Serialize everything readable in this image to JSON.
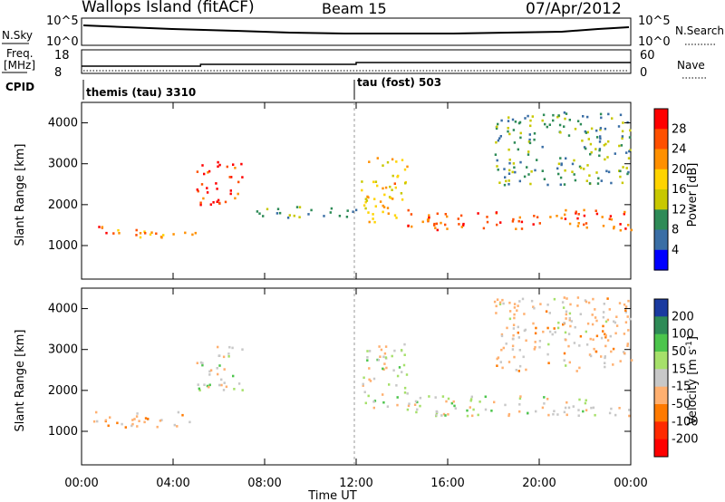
{
  "header": {
    "site": "Wallops Island (fitACF)",
    "beam": "Beam 15",
    "date": "07/Apr/2012"
  },
  "summary_panels": {
    "nsky_label": "N.Sky",
    "nsky_ticks": [
      "10^5",
      "10^0"
    ],
    "nsearch_label": "N.Search",
    "nsearch_ticks": [
      "10^5",
      "10^0"
    ],
    "freq_label": "Freq.",
    "freq_unit": "[MHz]",
    "freq_ticks": [
      "18",
      "8"
    ],
    "nave_label": "Nave",
    "nave_ticks": [
      "60",
      "0"
    ],
    "cpid_label": "CPID",
    "cpid_modes": [
      {
        "label": "themis (tau) 3310",
        "start_hour": 0
      },
      {
        "label": "tau (fost) 503",
        "start_hour": 12
      }
    ],
    "freq_steps": [
      {
        "hour": 0,
        "mhz": 10.5
      },
      {
        "hour": 5.2,
        "mhz": 11.5
      },
      {
        "hour": 12.0,
        "mhz": 12.5
      },
      {
        "hour": 24.0,
        "mhz": 12.5
      }
    ]
  },
  "colorbars": {
    "power": {
      "label": "Power [dB]",
      "ticks": [
        "28",
        "24",
        "20",
        "16",
        "12",
        "8",
        "4"
      ],
      "colors": [
        "#ff0000",
        "#ff5000",
        "#ff9000",
        "#ffd400",
        "#c8c800",
        "#2e8b57",
        "#3a6ea5",
        "#0000ff"
      ]
    },
    "velocity": {
      "label": "Velocity [m s",
      "label_sup": "-1",
      "label_end": "]",
      "ticks": [
        "200",
        "100",
        "50",
        "15",
        "-15",
        "-50",
        "-100",
        "-200"
      ],
      "colors": [
        "#1a3aa0",
        "#2e8b57",
        "#4cc54c",
        "#a6e06a",
        "#c8c8c8",
        "#ffb070",
        "#ff7a00",
        "#ff2a00",
        "#ff0000"
      ]
    }
  },
  "axes": {
    "ylabel": "Slant Range [km]",
    "yticks": [
      "4000",
      "3000",
      "2000",
      "1000"
    ],
    "xticks": [
      "00:00",
      "04:00",
      "08:00",
      "12:00",
      "16:00",
      "20:00",
      "00:00"
    ],
    "xlabel": "Time UT"
  },
  "chart_data": [
    {
      "type": "heatmap",
      "title": "Power",
      "x_unit": "hours UT",
      "y_unit": "km",
      "xlim": [
        0,
        24
      ],
      "ylim": [
        180,
        4500
      ],
      "features": [
        {
          "desc": "F-region band",
          "hours": [
            0.5,
            5.0
          ],
          "range_km": [
            1200,
            1500
          ],
          "power_db": 22
        },
        {
          "desc": "echo patch",
          "hours": [
            5.0,
            7.0
          ],
          "range_km": [
            2000,
            3100
          ],
          "power_db": 26
        },
        {
          "desc": "band",
          "hours": [
            7.5,
            12.0
          ],
          "range_km": [
            1700,
            2000
          ],
          "power_db": 10
        },
        {
          "desc": "echo patch",
          "hours": [
            12.2,
            14.2
          ],
          "range_km": [
            1600,
            3200
          ],
          "power_db": 18
        },
        {
          "desc": "strong band",
          "hours": [
            14.2,
            24.0
          ],
          "range_km": [
            1400,
            1900
          ],
          "power_db": 24
        },
        {
          "desc": "high-range patch",
          "hours": [
            18.0,
            24.0
          ],
          "range_km": [
            2500,
            4300
          ],
          "power_db": 10
        }
      ]
    },
    {
      "type": "heatmap",
      "title": "Velocity",
      "x_unit": "hours UT",
      "y_unit": "km",
      "xlim": [
        0,
        24
      ],
      "ylim": [
        180,
        4500
      ],
      "features": [
        {
          "desc": "low-velocity band",
          "hours": [
            0.5,
            5.0
          ],
          "range_km": [
            1100,
            1500
          ],
          "velocity_ms": -30
        },
        {
          "desc": "patch",
          "hours": [
            5.0,
            7.0
          ],
          "range_km": [
            2000,
            3100
          ],
          "velocity_ms": 0
        },
        {
          "desc": "patch",
          "hours": [
            12.2,
            14.2
          ],
          "range_km": [
            1600,
            3200
          ],
          "velocity_ms": 0
        },
        {
          "desc": "band",
          "hours": [
            14.2,
            24.0
          ],
          "range_km": [
            1400,
            1900
          ],
          "velocity_ms": 0
        },
        {
          "desc": "high-range patch",
          "hours": [
            18.0,
            24.0
          ],
          "range_km": [
            2500,
            4300
          ],
          "velocity_ms": -20
        }
      ]
    }
  ]
}
